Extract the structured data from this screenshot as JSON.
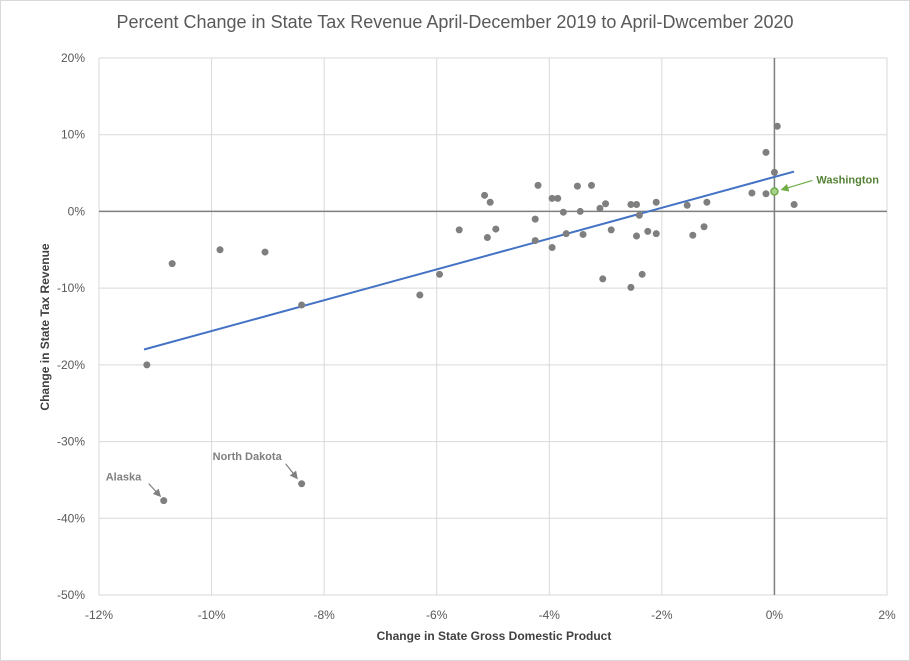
{
  "chart_data": {
    "type": "scatter",
    "title": "Percent Change in State Tax Revenue  April-December 2019 to April-Dwcember 2020",
    "xlabel": "Change in State Gross Domestic Product",
    "ylabel": "Change in State Tax Revenue",
    "xlim": [
      -12,
      2
    ],
    "ylim": [
      -50,
      20
    ],
    "x_ticks": [
      -12,
      -10,
      -8,
      -6,
      -4,
      -2,
      0,
      2
    ],
    "y_ticks": [
      -50,
      -40,
      -30,
      -20,
      -10,
      0,
      10,
      20
    ],
    "x_tick_labels": [
      "-12%",
      "-10%",
      "-8%",
      "-6%",
      "-4%",
      "-2%",
      "0%",
      "2%"
    ],
    "y_tick_labels": [
      "-50%",
      "-40%",
      "-30%",
      "-20%",
      "-10%",
      "0%",
      "10%",
      "20%"
    ],
    "grid": true,
    "point_color": "#7f7f7f",
    "trendline_color": "#4472c4",
    "highlight_color": "#70ad47",
    "trendline": {
      "x": [
        -11.2,
        0.35
      ],
      "y": [
        -18.0,
        5.2
      ]
    },
    "points": [
      {
        "x": -11.15,
        "y": -20.0
      },
      {
        "x": -10.85,
        "y": -37.7
      },
      {
        "x": -10.7,
        "y": -6.8
      },
      {
        "x": -9.85,
        "y": -5.0
      },
      {
        "x": -9.05,
        "y": -5.3
      },
      {
        "x": -8.4,
        "y": -12.2
      },
      {
        "x": -8.4,
        "y": -35.5
      },
      {
        "x": -6.3,
        "y": -10.9
      },
      {
        "x": -5.95,
        "y": -8.2
      },
      {
        "x": -5.6,
        "y": -2.4
      },
      {
        "x": -5.15,
        "y": 2.1
      },
      {
        "x": -5.05,
        "y": 1.2
      },
      {
        "x": -5.1,
        "y": -3.4
      },
      {
        "x": -4.95,
        "y": -2.3
      },
      {
        "x": -4.25,
        "y": -1.0
      },
      {
        "x": -4.2,
        "y": 3.4
      },
      {
        "x": -4.25,
        "y": -3.8
      },
      {
        "x": -3.95,
        "y": 1.7
      },
      {
        "x": -3.85,
        "y": 1.7
      },
      {
        "x": -3.95,
        "y": -4.7
      },
      {
        "x": -3.75,
        "y": -0.1
      },
      {
        "x": -3.7,
        "y": -2.9
      },
      {
        "x": -3.5,
        "y": 3.3
      },
      {
        "x": -3.45,
        "y": 0.0
      },
      {
        "x": -3.4,
        "y": -3.0
      },
      {
        "x": -3.25,
        "y": 3.4
      },
      {
        "x": -3.1,
        "y": 0.4
      },
      {
        "x": -3.0,
        "y": 1.0
      },
      {
        "x": -3.05,
        "y": -8.8
      },
      {
        "x": -2.9,
        "y": -2.4
      },
      {
        "x": -2.55,
        "y": 0.9
      },
      {
        "x": -2.55,
        "y": -9.9
      },
      {
        "x": -2.45,
        "y": 0.9
      },
      {
        "x": -2.4,
        "y": -0.5
      },
      {
        "x": -2.45,
        "y": -3.2
      },
      {
        "x": -2.35,
        "y": -8.2
      },
      {
        "x": -2.25,
        "y": -2.6
      },
      {
        "x": -2.1,
        "y": 1.2
      },
      {
        "x": -2.1,
        "y": -2.9
      },
      {
        "x": -1.55,
        "y": 0.8
      },
      {
        "x": -1.45,
        "y": -3.1
      },
      {
        "x": -1.25,
        "y": -2.0
      },
      {
        "x": -1.2,
        "y": 1.2
      },
      {
        "x": -0.4,
        "y": 2.4
      },
      {
        "x": -0.15,
        "y": 7.7
      },
      {
        "x": -0.15,
        "y": 2.3
      },
      {
        "x": 0.0,
        "y": 5.1
      },
      {
        "x": 0.05,
        "y": 11.1
      },
      {
        "x": 0.35,
        "y": 0.9
      }
    ],
    "highlight_point": {
      "label": "Washington",
      "x": 0.0,
      "y": 2.6
    },
    "annotations": [
      {
        "label": "Alaska",
        "x": -10.85,
        "y": -37.7
      },
      {
        "label": "North Dakota",
        "x": -8.4,
        "y": -35.5
      }
    ]
  }
}
